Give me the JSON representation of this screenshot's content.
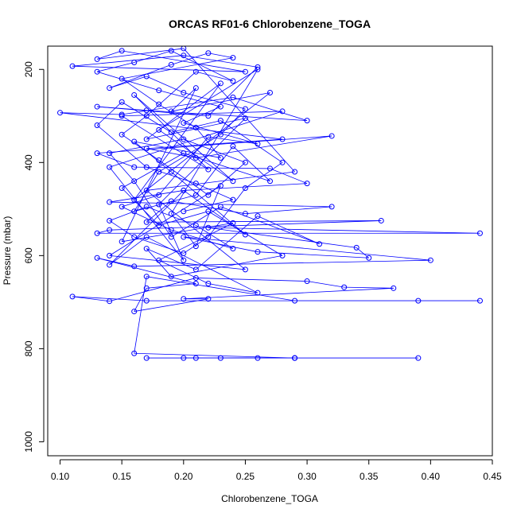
{
  "chart_data": {
    "type": "scatter",
    "title": "ORCAS RF01-6 Chlorobenzene_TOGA",
    "xlabel": "Chlorobenzene_TOGA",
    "ylabel": "Pressure (mbar)",
    "xlim": [
      0.09,
      0.45
    ],
    "ylim": [
      1030,
      150
    ],
    "y_reversed": true,
    "xticks": [
      0.1,
      0.15,
      0.2,
      0.25,
      0.3,
      0.35,
      0.4,
      0.45
    ],
    "xtick_labels": [
      "0.10",
      "0.15",
      "0.20",
      "0.25",
      "0.30",
      "0.35",
      "0.40",
      "0.45"
    ],
    "yticks": [
      200,
      400,
      600,
      800,
      1000
    ],
    "ytick_labels": [
      "200",
      "400",
      "600",
      "800",
      "1000"
    ],
    "grid": false,
    "legend": "none",
    "color": "#0000ff",
    "marker": "open-circle",
    "connected": true,
    "series": [
      {
        "points": [
          [
            0.29,
            820
          ],
          [
            0.17,
            820
          ],
          [
            0.26,
            820
          ],
          [
            0.39,
            820
          ],
          [
            0.29,
            820
          ],
          [
            0.2,
            820
          ],
          [
            0.21,
            820
          ],
          [
            0.23,
            820
          ],
          [
            0.29,
            820
          ],
          [
            0.16,
            810
          ],
          [
            0.17,
            645
          ],
          [
            0.29,
            697
          ],
          [
            0.44,
            697
          ],
          [
            0.39,
            697
          ],
          [
            0.17,
            697
          ],
          [
            0.11,
            688
          ],
          [
            0.14,
            698
          ],
          [
            0.21,
            648
          ],
          [
            0.3,
            655
          ],
          [
            0.33,
            668
          ],
          [
            0.37,
            670
          ],
          [
            0.2,
            693
          ],
          [
            0.22,
            693
          ],
          [
            0.16,
            720
          ],
          [
            0.17,
            670
          ],
          [
            0.21,
            660
          ],
          [
            0.13,
            605
          ],
          [
            0.16,
            623
          ],
          [
            0.4,
            610
          ],
          [
            0.2,
            560
          ],
          [
            0.26,
            592
          ],
          [
            0.35,
            605
          ],
          [
            0.34,
            583
          ],
          [
            0.22,
            540
          ],
          [
            0.44,
            552
          ],
          [
            0.13,
            552
          ],
          [
            0.14,
            545
          ],
          [
            0.36,
            525
          ],
          [
            0.17,
            528
          ],
          [
            0.19,
            483
          ],
          [
            0.25,
            510
          ],
          [
            0.32,
            495
          ],
          [
            0.14,
            485
          ],
          [
            0.2,
            460
          ],
          [
            0.3,
            445
          ],
          [
            0.27,
            413
          ],
          [
            0.16,
            410
          ],
          [
            0.13,
            380
          ],
          [
            0.32,
            343
          ],
          [
            0.21,
            390
          ],
          [
            0.17,
            370
          ],
          [
            0.28,
            350
          ],
          [
            0.1,
            293
          ],
          [
            0.15,
            297
          ],
          [
            0.24,
            260
          ],
          [
            0.3,
            310
          ],
          [
            0.17,
            288
          ],
          [
            0.13,
            280
          ],
          [
            0.22,
            300
          ],
          [
            0.26,
            195
          ],
          [
            0.2,
            170
          ],
          [
            0.11,
            193
          ],
          [
            0.25,
            205
          ],
          [
            0.15,
            160
          ],
          [
            0.13,
            178
          ],
          [
            0.2,
            155
          ],
          [
            0.29,
            420
          ],
          [
            0.17,
            460
          ],
          [
            0.25,
            630
          ],
          [
            0.14,
            600
          ],
          [
            0.23,
            450
          ],
          [
            0.21,
            580
          ],
          [
            0.19,
            510
          ],
          [
            0.26,
            200
          ],
          [
            0.18,
            330
          ],
          [
            0.24,
            440
          ],
          [
            0.16,
            255
          ],
          [
            0.22,
            415
          ],
          [
            0.15,
            300
          ],
          [
            0.28,
            290
          ],
          [
            0.14,
            410
          ],
          [
            0.2,
            610
          ],
          [
            0.18,
            490
          ],
          [
            0.25,
            305
          ],
          [
            0.17,
            350
          ],
          [
            0.23,
            230
          ],
          [
            0.16,
            480
          ],
          [
            0.27,
            250
          ],
          [
            0.19,
            290
          ],
          [
            0.21,
            240
          ],
          [
            0.15,
            570
          ],
          [
            0.24,
            530
          ],
          [
            0.18,
            610
          ],
          [
            0.22,
            660
          ],
          [
            0.26,
            680
          ],
          [
            0.17,
            560
          ],
          [
            0.14,
            620
          ],
          [
            0.2,
            460
          ],
          [
            0.25,
            555
          ],
          [
            0.19,
            420
          ],
          [
            0.16,
            355
          ],
          [
            0.23,
            390
          ],
          [
            0.21,
            325
          ],
          [
            0.18,
            275
          ],
          [
            0.15,
            220
          ],
          [
            0.24,
            175
          ],
          [
            0.22,
            165
          ],
          [
            0.19,
            190
          ],
          [
            0.14,
            240
          ],
          [
            0.17,
            215
          ],
          [
            0.2,
            250
          ],
          [
            0.25,
            285
          ],
          [
            0.23,
            340
          ],
          [
            0.18,
            420
          ],
          [
            0.16,
            505
          ],
          [
            0.21,
            470
          ],
          [
            0.24,
            365
          ],
          [
            0.27,
            440
          ],
          [
            0.2,
            380
          ],
          [
            0.15,
            455
          ],
          [
            0.18,
            535
          ],
          [
            0.22,
            505
          ],
          [
            0.28,
            600
          ],
          [
            0.19,
            645
          ],
          [
            0.17,
            585
          ],
          [
            0.21,
            630
          ],
          [
            0.26,
            515
          ],
          [
            0.31,
            575
          ],
          [
            0.23,
            495
          ],
          [
            0.19,
            560
          ],
          [
            0.16,
            440
          ],
          [
            0.14,
            380
          ],
          [
            0.2,
            350
          ],
          [
            0.25,
            400
          ],
          [
            0.22,
            470
          ],
          [
            0.18,
            395
          ],
          [
            0.15,
            340
          ],
          [
            0.17,
            300
          ],
          [
            0.21,
            205
          ],
          [
            0.24,
            225
          ],
          [
            0.19,
            160
          ],
          [
            0.16,
            185
          ],
          [
            0.13,
            205
          ],
          [
            0.18,
            245
          ],
          [
            0.23,
            280
          ],
          [
            0.2,
            315
          ],
          [
            0.26,
            360
          ],
          [
            0.22,
            345
          ],
          [
            0.18,
            470
          ],
          [
            0.15,
            495
          ],
          [
            0.19,
            545
          ],
          [
            0.24,
            585
          ],
          [
            0.21,
            535
          ],
          [
            0.17,
            495
          ],
          [
            0.14,
            525
          ],
          [
            0.16,
            560
          ],
          [
            0.2,
            595
          ],
          [
            0.22,
            560
          ],
          [
            0.25,
            455
          ],
          [
            0.28,
            400
          ],
          [
            0.23,
            310
          ],
          [
            0.19,
            335
          ],
          [
            0.15,
            270
          ],
          [
            0.13,
            320
          ],
          [
            0.17,
            410
          ],
          [
            0.21,
            445
          ],
          [
            0.24,
            480
          ],
          [
            0.2,
            505
          ]
        ]
      }
    ]
  }
}
